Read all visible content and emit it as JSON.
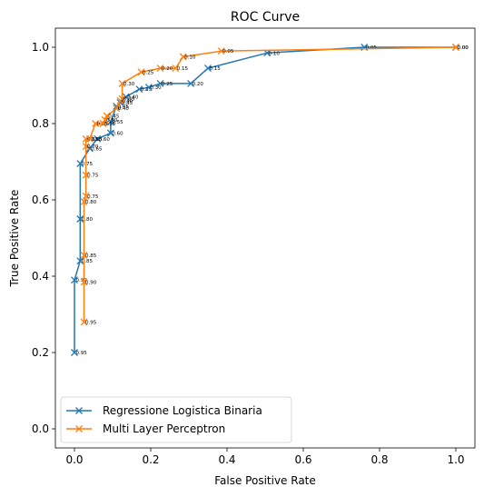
{
  "chart_data": {
    "type": "line",
    "title": "ROC Curve",
    "xlabel": "False Positive Rate",
    "ylabel": "True Positive Rate",
    "xlim": [
      -0.05,
      1.05
    ],
    "ylim": [
      -0.05,
      1.05
    ],
    "xticks": [
      "0.0",
      "0.2",
      "0.4",
      "0.6",
      "0.8",
      "1.0"
    ],
    "yticks": [
      "0.0",
      "0.2",
      "0.4",
      "0.6",
      "0.8",
      "1.0"
    ],
    "grid": false,
    "legend_position": "lower-left",
    "series": [
      {
        "name": "Regressione Logistica Binaria",
        "color": "#1f77b4",
        "marker": "x",
        "points": [
          {
            "x": 0.0,
            "y": 0.2,
            "label": "0.95"
          },
          {
            "x": 0.0,
            "y": 0.39,
            "label": "0.90"
          },
          {
            "x": 0.015,
            "y": 0.44,
            "label": "0.85"
          },
          {
            "x": 0.015,
            "y": 0.55,
            "label": "0.80"
          },
          {
            "x": 0.015,
            "y": 0.695,
            "label": "0.75"
          },
          {
            "x": 0.04,
            "y": 0.735,
            "label": "0.65"
          },
          {
            "x": 0.06,
            "y": 0.76,
            "label": "0.60"
          },
          {
            "x": 0.095,
            "y": 0.775,
            "label": "0.60"
          },
          {
            "x": 0.095,
            "y": 0.805,
            "label": "0.55"
          },
          {
            "x": 0.11,
            "y": 0.845,
            "label": "0.45"
          },
          {
            "x": 0.12,
            "y": 0.855,
            "label": "0.45"
          },
          {
            "x": 0.135,
            "y": 0.87,
            "label": "0.40"
          },
          {
            "x": 0.17,
            "y": 0.89,
            "label": "0.35"
          },
          {
            "x": 0.195,
            "y": 0.895,
            "label": "0.30"
          },
          {
            "x": 0.225,
            "y": 0.905,
            "label": "0.25"
          },
          {
            "x": 0.305,
            "y": 0.905,
            "label": "0.20"
          },
          {
            "x": 0.35,
            "y": 0.945,
            "label": "0.15"
          },
          {
            "x": 0.505,
            "y": 0.985,
            "label": "0.10"
          },
          {
            "x": 0.76,
            "y": 1.0,
            "label": "0.05"
          },
          {
            "x": 1.0,
            "y": 1.0,
            "label": "0.00"
          }
        ]
      },
      {
        "name": "Multi Layer Perceptron",
        "color": "#ff7f0e",
        "marker": "x",
        "points": [
          {
            "x": 0.025,
            "y": 0.28,
            "label": "0.95"
          },
          {
            "x": 0.025,
            "y": 0.385,
            "label": "0.90"
          },
          {
            "x": 0.025,
            "y": 0.455,
            "label": "0.85"
          },
          {
            "x": 0.025,
            "y": 0.595,
            "label": "0.80"
          },
          {
            "x": 0.03,
            "y": 0.61,
            "label": "0.75"
          },
          {
            "x": 0.03,
            "y": 0.665,
            "label": "0.75"
          },
          {
            "x": 0.03,
            "y": 0.74,
            "label": "0.70"
          },
          {
            "x": 0.03,
            "y": 0.76,
            "label": "0.65"
          },
          {
            "x": 0.04,
            "y": 0.76,
            "label": "0.65"
          },
          {
            "x": 0.055,
            "y": 0.8,
            "label": "0.55"
          },
          {
            "x": 0.075,
            "y": 0.8,
            "label": "0.55"
          },
          {
            "x": 0.08,
            "y": 0.81,
            "label": "0.50"
          },
          {
            "x": 0.085,
            "y": 0.82,
            "label": "0.45"
          },
          {
            "x": 0.11,
            "y": 0.84,
            "label": "0.40"
          },
          {
            "x": 0.12,
            "y": 0.86,
            "label": "0.40"
          },
          {
            "x": 0.125,
            "y": 0.865,
            "label": "0.35"
          },
          {
            "x": 0.125,
            "y": 0.905,
            "label": "0.30"
          },
          {
            "x": 0.175,
            "y": 0.935,
            "label": "0.25"
          },
          {
            "x": 0.225,
            "y": 0.945,
            "label": "0.20"
          },
          {
            "x": 0.265,
            "y": 0.945,
            "label": "0.15"
          },
          {
            "x": 0.285,
            "y": 0.975,
            "label": "0.10"
          },
          {
            "x": 0.385,
            "y": 0.99,
            "label": "0.05"
          },
          {
            "x": 1.0,
            "y": 1.0,
            "label": "0.00"
          }
        ]
      }
    ]
  }
}
